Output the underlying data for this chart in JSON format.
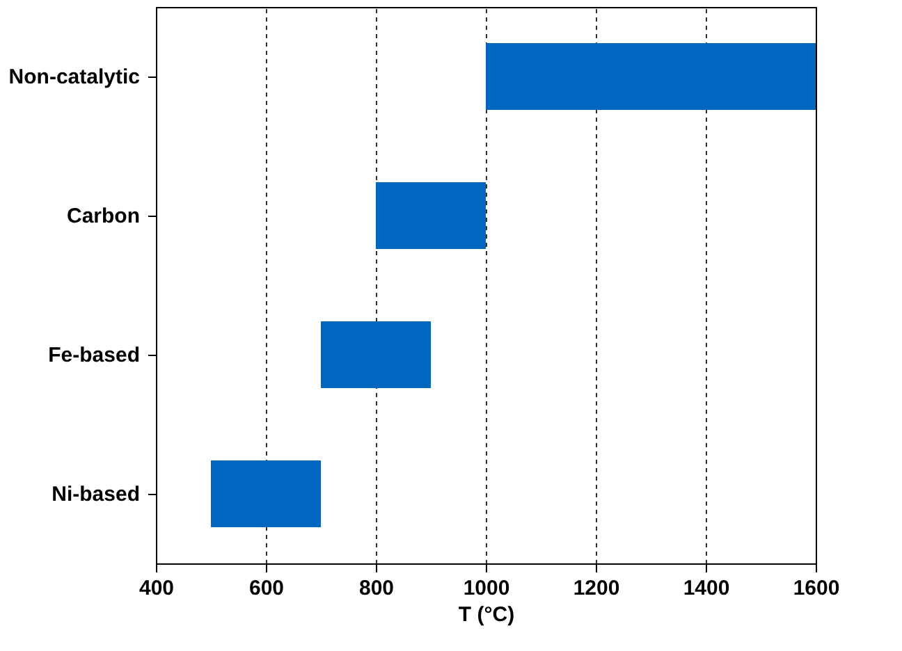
{
  "chart_data": {
    "type": "bar",
    "orientation": "horizontal",
    "xlabel": "T (°C)",
    "categories": [
      "Non-catalytic",
      "Carbon",
      "Fe-based",
      "Ni-based"
    ],
    "base": [
      1000,
      800,
      700,
      500
    ],
    "values": [
      600,
      200,
      200,
      200
    ],
    "color": "#0066c0",
    "xlim": [
      400,
      1600
    ],
    "xticks": [
      400,
      600,
      800,
      1000,
      1200,
      1400,
      1600
    ],
    "grid": "x"
  }
}
